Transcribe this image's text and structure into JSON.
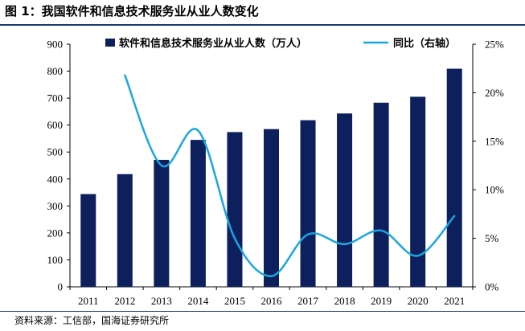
{
  "figure": {
    "title": "图 1：我国软件和信息技术服务业从业人数变化",
    "source": "资料来源：工信部，国海证券研究所"
  },
  "colors": {
    "bar": "#0d1f5c",
    "line": "#1aa7e0",
    "rule": "#1b3a6b"
  },
  "chart_data": {
    "type": "bar",
    "categories": [
      "2011",
      "2012",
      "2013",
      "2014",
      "2015",
      "2016",
      "2017",
      "2018",
      "2019",
      "2020",
      "2021"
    ],
    "series": [
      {
        "name": "软件和信息技术服务业从业人数（万人）",
        "type": "bar",
        "axis": "left",
        "values": [
          344,
          418,
          471,
          545,
          574,
          585,
          618,
          643,
          683,
          705,
          809
        ]
      },
      {
        "name": "同比（右轴）",
        "type": "line",
        "axis": "right",
        "values": [
          null,
          21.8,
          12.5,
          16.1,
          5.0,
          1.1,
          5.4,
          4.4,
          5.8,
          3.2,
          7.3
        ]
      }
    ],
    "y_left": {
      "min": 0,
      "max": 900,
      "ticks": [
        "0",
        "100",
        "200",
        "300",
        "400",
        "500",
        "600",
        "700",
        "800",
        "900"
      ]
    },
    "y_right": {
      "min": 0,
      "max": 25,
      "ticks": [
        "0%",
        "5%",
        "10%",
        "15%",
        "20%",
        "25%"
      ]
    },
    "legend_position": "top",
    "grid": false
  }
}
